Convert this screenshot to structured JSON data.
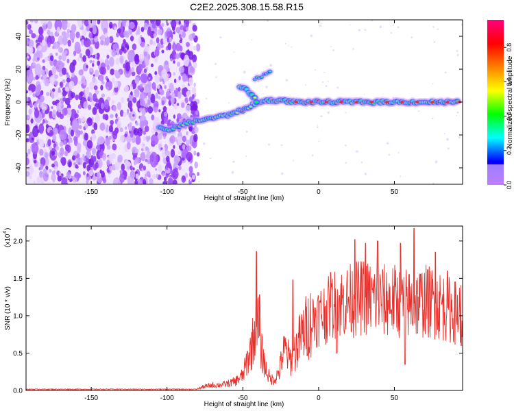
{
  "title": "C2E2.2025.308.15.58.R15",
  "colors": {
    "snr_line": "#e8302b",
    "axis": "#000000",
    "scatter_purple": "#8a2be2",
    "scatter_dark": "#6a0fd0"
  },
  "chart_data": [
    {
      "type": "heatmap",
      "name": "spectrogram",
      "xlabel": "Height of straight line (km)",
      "ylabel": "Frequency (Hz)",
      "xlim": [
        -193,
        95
      ],
      "ylim": [
        -50,
        50
      ],
      "xticks": [
        -150,
        -100,
        -50,
        0,
        50
      ],
      "yticks": [
        -40,
        -20,
        0,
        20,
        40
      ],
      "noise_region_km": [
        -193,
        -83
      ],
      "track_points": [
        {
          "x": -105,
          "y": -16
        },
        {
          "x": -100,
          "y": -17
        },
        {
          "x": -93,
          "y": -15
        },
        {
          "x": -84,
          "y": -12
        },
        {
          "x": -78,
          "y": -11
        },
        {
          "x": -72,
          "y": -10
        },
        {
          "x": -66,
          "y": -9
        },
        {
          "x": -60,
          "y": -8
        },
        {
          "x": -55,
          "y": -6
        },
        {
          "x": -50,
          "y": -5
        },
        {
          "x": -46,
          "y": -3
        },
        {
          "x": -42,
          "y": -1
        },
        {
          "x": -38,
          "y": 0
        },
        {
          "x": -34,
          "y": 1
        },
        {
          "x": -30,
          "y": 1
        },
        {
          "x": -25,
          "y": 1
        },
        {
          "x": -15,
          "y": 0
        },
        {
          "x": -5,
          "y": 0
        },
        {
          "x": 5,
          "y": 0
        },
        {
          "x": 15,
          "y": 0
        },
        {
          "x": 25,
          "y": 0
        },
        {
          "x": 35,
          "y": 0
        },
        {
          "x": 45,
          "y": 0
        },
        {
          "x": 55,
          "y": 0
        },
        {
          "x": 65,
          "y": 0
        },
        {
          "x": 75,
          "y": 0
        },
        {
          "x": 85,
          "y": 0
        },
        {
          "x": 93,
          "y": 0
        }
      ],
      "branch_points": [
        {
          "x": -52,
          "y": 9
        },
        {
          "x": -49,
          "y": 8
        },
        {
          "x": -46,
          "y": 6
        },
        {
          "x": -44,
          "y": 4
        },
        {
          "x": -42,
          "y": 2
        },
        {
          "x": -40,
          "y": -2
        }
      ],
      "faint_points": [
        {
          "x": -42,
          "y": 14
        },
        {
          "x": -39,
          "y": 15
        },
        {
          "x": -36,
          "y": 17
        },
        {
          "x": -33,
          "y": 18
        },
        {
          "x": -31,
          "y": 19
        }
      ],
      "colorbar": {
        "label": "Normalized spectral amplitude",
        "ticks": [
          0.0,
          0.2,
          0.4,
          0.6,
          0.8
        ],
        "tick_labels": [
          "0.0",
          "0.2",
          "0.4",
          "0.6",
          "0.8"
        ],
        "range": [
          0,
          0.96
        ],
        "stops": [
          "#8000ff",
          "#0000ff",
          "#00ffff",
          "#00ff00",
          "#ffff00",
          "#ff8000",
          "#ff0000",
          "#ff0080"
        ]
      }
    },
    {
      "type": "line",
      "name": "snr",
      "xlabel": "Height of straight line (km)",
      "ylabel": "SNR (10 * v/v)",
      "multiplier_label": "(x10",
      "multiplier_exp": "4",
      "multiplier_close": ")",
      "xlim": [
        -193,
        95
      ],
      "ylim": [
        0,
        2.2
      ],
      "xticks": [
        -150,
        -100,
        -50,
        0,
        50
      ],
      "yticks": [
        0.0,
        0.5,
        1.0,
        1.5,
        2.0
      ],
      "ytick_labels": [
        "0.0",
        "0.5",
        "1.0",
        "1.5",
        "2.0"
      ],
      "envelope": [
        {
          "x": -193,
          "y": 0.01
        },
        {
          "x": -120,
          "y": 0.01
        },
        {
          "x": -80,
          "y": 0.02
        },
        {
          "x": -76,
          "y": 0.05
        },
        {
          "x": -70,
          "y": 0.07
        },
        {
          "x": -62,
          "y": 0.08
        },
        {
          "x": -55,
          "y": 0.12
        },
        {
          "x": -50,
          "y": 0.2
        },
        {
          "x": -47,
          "y": 0.4
        },
        {
          "x": -44,
          "y": 0.6
        },
        {
          "x": -42,
          "y": 0.8
        },
        {
          "x": -40,
          "y": 0.9
        },
        {
          "x": -38,
          "y": 0.55
        },
        {
          "x": -35,
          "y": 0.3
        },
        {
          "x": -32,
          "y": 0.15
        },
        {
          "x": -29,
          "y": 0.15
        },
        {
          "x": -26,
          "y": 0.25
        },
        {
          "x": -24,
          "y": 0.45
        },
        {
          "x": -22,
          "y": 0.55
        },
        {
          "x": -20,
          "y": 0.45
        },
        {
          "x": -18,
          "y": 0.4
        },
        {
          "x": -15,
          "y": 0.55
        },
        {
          "x": -12,
          "y": 0.7
        },
        {
          "x": -8,
          "y": 0.85
        },
        {
          "x": -4,
          "y": 0.95
        },
        {
          "x": 0,
          "y": 1.0
        },
        {
          "x": 5,
          "y": 1.05
        },
        {
          "x": 10,
          "y": 1.15
        },
        {
          "x": 20,
          "y": 1.2
        },
        {
          "x": 30,
          "y": 1.25
        },
        {
          "x": 40,
          "y": 1.2
        },
        {
          "x": 50,
          "y": 1.2
        },
        {
          "x": 60,
          "y": 1.15
        },
        {
          "x": 70,
          "y": 1.2
        },
        {
          "x": 80,
          "y": 1.15
        },
        {
          "x": 90,
          "y": 1.05
        },
        {
          "x": 95,
          "y": 1.05
        }
      ],
      "peaks": [
        {
          "x": -41,
          "y": 1.86
        },
        {
          "x": -39,
          "y": 1.28
        },
        {
          "x": -17,
          "y": 1.48
        },
        {
          "x": 8,
          "y": 1.58
        },
        {
          "x": 24,
          "y": 2.02
        },
        {
          "x": 31,
          "y": 1.97
        },
        {
          "x": 39,
          "y": 2.0
        },
        {
          "x": 54,
          "y": 1.97
        },
        {
          "x": 63,
          "y": 2.17
        },
        {
          "x": 77,
          "y": 1.85
        },
        {
          "x": 85,
          "y": 1.6
        }
      ],
      "dips": [
        {
          "x": 12,
          "y": 0.5
        },
        {
          "x": 57,
          "y": 0.35
        },
        {
          "x": 94,
          "y": 0.6
        }
      ]
    }
  ]
}
